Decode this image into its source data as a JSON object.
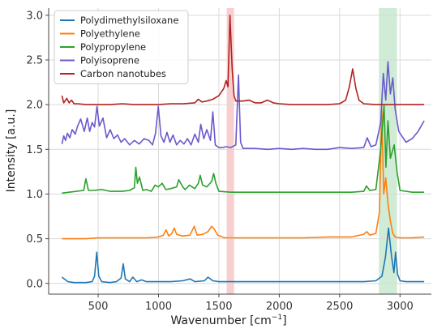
{
  "chart_data": {
    "type": "line",
    "title": "",
    "xlabel": "Wavenumber [cm",
    "xlabel_superscript": "−1",
    "xlabel_suffix": "]",
    "ylabel": "Intensity [a.u.]",
    "xlim": [
      90,
      3260
    ],
    "ylim": [
      -0.12,
      3.08
    ],
    "grid": true,
    "legend_position": "top-left",
    "x_ticks": [
      500,
      1000,
      1500,
      2000,
      2500,
      3000
    ],
    "x_tick_labels": [
      "500",
      "1000",
      "1500",
      "2000",
      "2500",
      "3000"
    ],
    "y_ticks": [
      0.0,
      0.5,
      1.0,
      1.5,
      2.0,
      2.5,
      3.0
    ],
    "y_tick_labels": [
      "0.0",
      "0.5",
      "1.0",
      "1.5",
      "2.0",
      "2.5",
      "3.0"
    ],
    "highlight_bands": [
      {
        "x_min": 1565,
        "x_max": 1625,
        "color": "#f4a6a6"
      },
      {
        "x_min": 2825,
        "x_max": 2975,
        "color": "#a9ddb5"
      }
    ],
    "series": [
      {
        "name": "Polydimethylsiloxane",
        "color": "#1f77b4",
        "baseline": 0.02,
        "peaks": [
          [
            210,
            0.05,
            10
          ],
          [
            488,
            0.33,
            9
          ],
          [
            708,
            0.2,
            9
          ],
          [
            787,
            0.05,
            10
          ],
          [
            860,
            0.02,
            12
          ],
          [
            1262,
            0.03,
            10
          ],
          [
            1410,
            0.05,
            12
          ],
          [
            2905,
            0.6,
            14
          ],
          [
            2963,
            0.33,
            9
          ]
        ],
        "x": [
          200,
          250,
          300,
          350,
          400,
          450,
          470,
          488,
          505,
          530,
          600,
          650,
          690,
          708,
          725,
          760,
          787,
          820,
          860,
          900,
          1000,
          1100,
          1200,
          1262,
          1300,
          1380,
          1410,
          1450,
          1500,
          1600,
          1700,
          1800,
          1900,
          2000,
          2100,
          2200,
          2300,
          2400,
          2500,
          2600,
          2700,
          2800,
          2850,
          2880,
          2905,
          2930,
          2950,
          2963,
          2980,
          3000,
          3050,
          3100,
          3150,
          3200
        ],
        "values": [
          0.07,
          0.02,
          0.01,
          0.01,
          0.01,
          0.02,
          0.08,
          0.35,
          0.08,
          0.02,
          0.01,
          0.02,
          0.06,
          0.22,
          0.05,
          0.02,
          0.07,
          0.02,
          0.04,
          0.02,
          0.02,
          0.02,
          0.03,
          0.05,
          0.02,
          0.03,
          0.07,
          0.03,
          0.02,
          0.02,
          0.02,
          0.02,
          0.02,
          0.02,
          0.02,
          0.02,
          0.02,
          0.02,
          0.02,
          0.02,
          0.02,
          0.03,
          0.08,
          0.3,
          0.62,
          0.3,
          0.12,
          0.35,
          0.1,
          0.03,
          0.02,
          0.02,
          0.02,
          0.02
        ]
      },
      {
        "name": "Polyethylene",
        "color": "#ff7f0e",
        "x": [
          200,
          300,
          400,
          500,
          600,
          700,
          800,
          900,
          1000,
          1040,
          1062,
          1085,
          1110,
          1130,
          1150,
          1200,
          1260,
          1296,
          1320,
          1370,
          1410,
          1440,
          1460,
          1490,
          1550,
          1650,
          1800,
          2000,
          2200,
          2400,
          2600,
          2700,
          2725,
          2750,
          2800,
          2830,
          2848,
          2865,
          2882,
          2900,
          2920,
          2940,
          2960,
          3000,
          3100,
          3200
        ],
        "values": [
          0.5,
          0.5,
          0.5,
          0.51,
          0.51,
          0.51,
          0.51,
          0.51,
          0.52,
          0.54,
          0.6,
          0.53,
          0.56,
          0.62,
          0.55,
          0.53,
          0.54,
          0.64,
          0.54,
          0.55,
          0.58,
          0.64,
          0.61,
          0.54,
          0.51,
          0.51,
          0.51,
          0.51,
          0.51,
          0.52,
          0.52,
          0.55,
          0.58,
          0.54,
          0.56,
          0.8,
          1.95,
          1.0,
          1.18,
          0.9,
          0.7,
          0.56,
          0.52,
          0.51,
          0.51,
          0.52
        ]
      },
      {
        "name": "Polypropylene",
        "color": "#2ca02c",
        "x": [
          200,
          260,
          320,
          380,
          398,
          420,
          460,
          530,
          600,
          700,
          760,
          800,
          812,
          825,
          842,
          870,
          900,
          940,
          972,
          998,
          1030,
          1060,
          1100,
          1150,
          1168,
          1200,
          1220,
          1256,
          1300,
          1330,
          1345,
          1365,
          1400,
          1440,
          1457,
          1475,
          1500,
          1600,
          1700,
          1800,
          1900,
          2000,
          2200,
          2400,
          2600,
          2700,
          2722,
          2750,
          2800,
          2840,
          2868,
          2883,
          2900,
          2920,
          2952,
          2975,
          3000,
          3100,
          3200
        ],
        "values": [
          1.01,
          1.02,
          1.03,
          1.04,
          1.17,
          1.04,
          1.04,
          1.05,
          1.03,
          1.03,
          1.04,
          1.07,
          1.3,
          1.12,
          1.19,
          1.04,
          1.05,
          1.03,
          1.1,
          1.08,
          1.12,
          1.05,
          1.06,
          1.08,
          1.16,
          1.08,
          1.05,
          1.1,
          1.06,
          1.12,
          1.21,
          1.1,
          1.08,
          1.14,
          1.23,
          1.12,
          1.03,
          1.02,
          1.02,
          1.02,
          1.02,
          1.02,
          1.02,
          1.02,
          1.02,
          1.03,
          1.09,
          1.04,
          1.05,
          1.5,
          1.99,
          1.3,
          1.82,
          1.4,
          1.55,
          1.25,
          1.04,
          1.02,
          1.02
        ]
      },
      {
        "name": "Polyisoprene",
        "color": "#6a5acd",
        "x": [
          200,
          215,
          230,
          245,
          265,
          285,
          310,
          330,
          355,
          385,
          410,
          430,
          450,
          470,
          490,
          510,
          540,
          570,
          600,
          630,
          660,
          690,
          720,
          760,
          800,
          840,
          880,
          920,
          950,
          975,
          998,
          1020,
          1045,
          1070,
          1095,
          1120,
          1150,
          1180,
          1210,
          1240,
          1270,
          1300,
          1330,
          1350,
          1375,
          1400,
          1430,
          1450,
          1470,
          1500,
          1530,
          1560,
          1600,
          1640,
          1662,
          1680,
          1700,
          1750,
          1800,
          1900,
          2000,
          2100,
          2200,
          2300,
          2400,
          2500,
          2600,
          2700,
          2728,
          2760,
          2800,
          2840,
          2862,
          2882,
          2900,
          2920,
          2940,
          2960,
          2990,
          3050,
          3100,
          3150,
          3200
        ],
        "values": [
          1.56,
          1.65,
          1.6,
          1.68,
          1.63,
          1.72,
          1.67,
          1.76,
          1.84,
          1.7,
          1.85,
          1.7,
          1.8,
          1.75,
          1.98,
          1.76,
          1.85,
          1.63,
          1.72,
          1.62,
          1.66,
          1.58,
          1.62,
          1.55,
          1.6,
          1.56,
          1.62,
          1.6,
          1.55,
          1.68,
          1.98,
          1.65,
          1.58,
          1.69,
          1.58,
          1.66,
          1.55,
          1.6,
          1.56,
          1.62,
          1.55,
          1.67,
          1.58,
          1.78,
          1.62,
          1.72,
          1.6,
          1.92,
          1.55,
          1.52,
          1.52,
          1.53,
          1.52,
          1.55,
          2.33,
          1.58,
          1.51,
          1.51,
          1.51,
          1.5,
          1.51,
          1.5,
          1.51,
          1.5,
          1.5,
          1.52,
          1.51,
          1.52,
          1.63,
          1.53,
          1.55,
          1.8,
          2.35,
          2.05,
          2.48,
          2.12,
          2.3,
          1.95,
          1.7,
          1.58,
          1.62,
          1.7,
          1.82
        ]
      },
      {
        "name": "Carbon nanotubes",
        "color": "#b22222",
        "x": [
          200,
          215,
          240,
          260,
          280,
          300,
          330,
          400,
          500,
          600,
          700,
          800,
          900,
          1000,
          1100,
          1200,
          1300,
          1330,
          1360,
          1400,
          1450,
          1500,
          1540,
          1560,
          1575,
          1592,
          1610,
          1625,
          1640,
          1700,
          1750,
          1800,
          1850,
          1900,
          1920,
          1950,
          2000,
          2100,
          2200,
          2300,
          2400,
          2500,
          2550,
          2580,
          2608,
          2635,
          2660,
          2700,
          2800,
          2900,
          3000,
          3100,
          3200
        ],
        "values": [
          2.1,
          2.02,
          2.07,
          2.02,
          2.05,
          2.01,
          2.01,
          2.0,
          2.0,
          2.0,
          2.01,
          2.0,
          2.0,
          2.0,
          2.01,
          2.01,
          2.02,
          2.06,
          2.03,
          2.04,
          2.06,
          2.1,
          2.18,
          2.27,
          2.2,
          3.0,
          2.4,
          2.1,
          2.04,
          2.04,
          2.05,
          2.02,
          2.02,
          2.05,
          2.04,
          2.02,
          2.01,
          2.0,
          2.0,
          2.0,
          2.0,
          2.01,
          2.05,
          2.2,
          2.4,
          2.18,
          2.05,
          2.01,
          2.0,
          2.0,
          2.0,
          2.0,
          2.0
        ]
      }
    ]
  }
}
